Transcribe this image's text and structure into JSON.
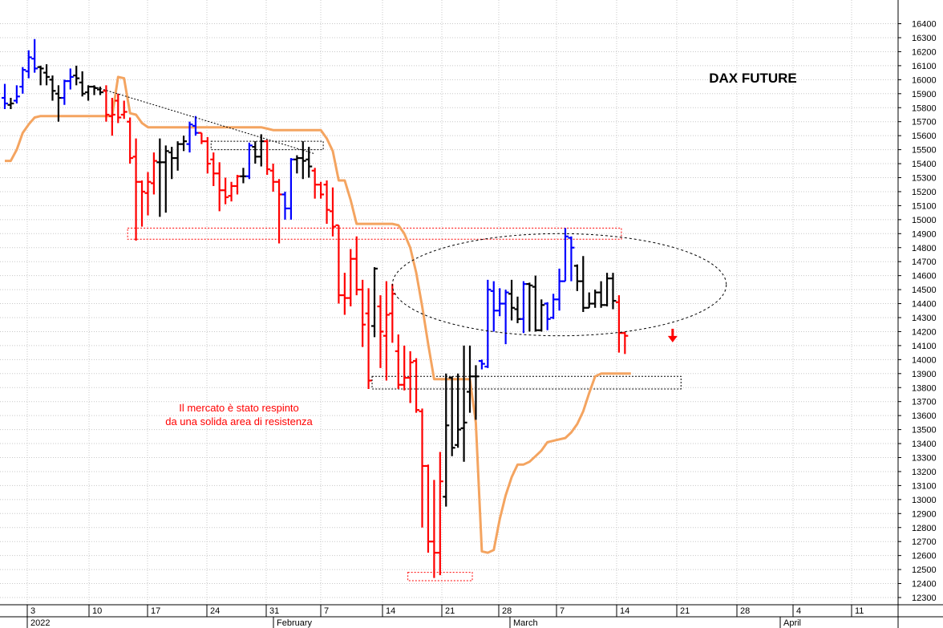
{
  "chart_data": {
    "type": "ohlc",
    "title": "DAX FUTURE",
    "annotation_lines": [
      "Il mercato è stato respinto",
      "da una solida area di resistenza"
    ],
    "ylim": [
      12240,
      16410
    ],
    "y_ticks": [
      12300,
      12400,
      12500,
      12600,
      12700,
      12800,
      12900,
      13000,
      13100,
      13200,
      13300,
      13400,
      13500,
      13600,
      13700,
      13800,
      13900,
      14000,
      14100,
      14200,
      14300,
      14400,
      14500,
      14600,
      14700,
      14800,
      14900,
      15000,
      15100,
      15200,
      15300,
      15400,
      15500,
      15600,
      15700,
      15800,
      15900,
      16000,
      16100,
      16200,
      16300,
      16400
    ],
    "x_label_days": [
      "3",
      "10",
      "17",
      "24",
      "31",
      "7",
      "14",
      "21",
      "28",
      "7",
      "14",
      "21",
      "28",
      "4",
      "11"
    ],
    "x_label_months": [
      "2022",
      "February",
      "March",
      "April"
    ],
    "colors": {
      "up": "#0000ff",
      "down": "#ff0000",
      "neutral": "#000000",
      "line": "#f4a460",
      "zone": "#ff0000",
      "axis": "#000000"
    },
    "bars": [
      {
        "o": 15870,
        "h": 15970,
        "l": 15790,
        "c": 15830,
        "col": "up"
      },
      {
        "o": 15820,
        "h": 15870,
        "l": 15790,
        "c": 15830,
        "col": "neutral"
      },
      {
        "o": 15850,
        "h": 15960,
        "l": 15830,
        "c": 15880,
        "col": "up"
      },
      {
        "o": 15950,
        "h": 16090,
        "l": 15900,
        "c": 16070,
        "col": "up"
      },
      {
        "o": 16060,
        "h": 16210,
        "l": 16010,
        "c": 16160,
        "col": "up"
      },
      {
        "o": 16150,
        "h": 16290,
        "l": 16050,
        "c": 16080,
        "col": "up"
      },
      {
        "o": 16090,
        "h": 16100,
        "l": 15960,
        "c": 16080,
        "col": "neutral"
      },
      {
        "o": 16050,
        "h": 16110,
        "l": 15960,
        "c": 16020,
        "col": "neutral"
      },
      {
        "o": 16000,
        "h": 16030,
        "l": 15850,
        "c": 15920,
        "col": "neutral"
      },
      {
        "o": 15900,
        "h": 15960,
        "l": 15700,
        "c": 15870,
        "col": "neutral"
      },
      {
        "o": 15870,
        "h": 16000,
        "l": 15820,
        "c": 15990,
        "col": "up"
      },
      {
        "o": 15990,
        "h": 16080,
        "l": 15930,
        "c": 16020,
        "col": "up"
      },
      {
        "o": 16030,
        "h": 16100,
        "l": 15960,
        "c": 16010,
        "col": "neutral"
      },
      {
        "o": 15980,
        "h": 16060,
        "l": 15880,
        "c": 15900,
        "col": "neutral"
      },
      {
        "o": 15910,
        "h": 15960,
        "l": 15850,
        "c": 15950,
        "col": "neutral"
      },
      {
        "o": 15950,
        "h": 15960,
        "l": 15890,
        "c": 15940,
        "col": "neutral"
      },
      {
        "o": 15930,
        "h": 15950,
        "l": 15890,
        "c": 15910,
        "col": "neutral"
      },
      {
        "o": 15920,
        "h": 15960,
        "l": 15700,
        "c": 15750,
        "col": "down"
      },
      {
        "o": 15740,
        "h": 15870,
        "l": 15600,
        "c": 15750,
        "col": "down"
      },
      {
        "o": 15850,
        "h": 15900,
        "l": 15690,
        "c": 15730,
        "col": "down"
      },
      {
        "o": 15750,
        "h": 15850,
        "l": 15720,
        "c": 15770,
        "col": "down"
      },
      {
        "o": 15700,
        "h": 15730,
        "l": 15400,
        "c": 15440,
        "col": "down"
      },
      {
        "o": 15450,
        "h": 15580,
        "l": 14850,
        "c": 15270,
        "col": "down"
      },
      {
        "o": 15270,
        "h": 15280,
        "l": 14950,
        "c": 15200,
        "col": "down"
      },
      {
        "o": 15190,
        "h": 15340,
        "l": 15030,
        "c": 15270,
        "col": "down"
      },
      {
        "o": 15260,
        "h": 15480,
        "l": 15180,
        "c": 15420,
        "col": "down"
      },
      {
        "o": 15410,
        "h": 15580,
        "l": 15020,
        "c": 15410,
        "col": "neutral"
      },
      {
        "o": 15410,
        "h": 15530,
        "l": 15050,
        "c": 15490,
        "col": "neutral"
      },
      {
        "o": 15480,
        "h": 15520,
        "l": 15290,
        "c": 15440,
        "col": "neutral"
      },
      {
        "o": 15440,
        "h": 15560,
        "l": 15350,
        "c": 15540,
        "col": "neutral"
      },
      {
        "o": 15540,
        "h": 15600,
        "l": 15490,
        "c": 15560,
        "col": "neutral"
      },
      {
        "o": 15540,
        "h": 15700,
        "l": 15480,
        "c": 15680,
        "col": "up"
      },
      {
        "o": 15670,
        "h": 15740,
        "l": 15600,
        "c": 15620,
        "col": "up"
      },
      {
        "o": 15620,
        "h": 15620,
        "l": 15540,
        "c": 15560,
        "col": "down"
      },
      {
        "o": 15560,
        "h": 15590,
        "l": 15330,
        "c": 15400,
        "col": "down"
      },
      {
        "o": 15430,
        "h": 15480,
        "l": 15240,
        "c": 15330,
        "col": "down"
      },
      {
        "o": 15330,
        "h": 15410,
        "l": 15060,
        "c": 15210,
        "col": "down"
      },
      {
        "o": 15210,
        "h": 15300,
        "l": 15110,
        "c": 15160,
        "col": "down"
      },
      {
        "o": 15170,
        "h": 15270,
        "l": 15130,
        "c": 15240,
        "col": "down"
      },
      {
        "o": 15240,
        "h": 15320,
        "l": 15180,
        "c": 15310,
        "col": "down"
      },
      {
        "o": 15310,
        "h": 15370,
        "l": 15260,
        "c": 15310,
        "col": "neutral"
      },
      {
        "o": 15310,
        "h": 15550,
        "l": 15290,
        "c": 15530,
        "col": "up"
      },
      {
        "o": 15520,
        "h": 15560,
        "l": 15400,
        "c": 15450,
        "col": "neutral"
      },
      {
        "o": 15450,
        "h": 15610,
        "l": 15380,
        "c": 15560,
        "col": "neutral"
      },
      {
        "o": 15560,
        "h": 15570,
        "l": 15320,
        "c": 15360,
        "col": "down"
      },
      {
        "o": 15350,
        "h": 15400,
        "l": 15200,
        "c": 15270,
        "col": "down"
      },
      {
        "o": 15270,
        "h": 15290,
        "l": 14830,
        "c": 15180,
        "col": "down"
      },
      {
        "o": 15180,
        "h": 15200,
        "l": 15000,
        "c": 15080,
        "col": "up"
      },
      {
        "o": 15080,
        "h": 15440,
        "l": 15000,
        "c": 15430,
        "col": "up"
      },
      {
        "o": 15430,
        "h": 15460,
        "l": 15330,
        "c": 15440,
        "col": "neutral"
      },
      {
        "o": 15440,
        "h": 15560,
        "l": 15290,
        "c": 15420,
        "col": "neutral"
      },
      {
        "o": 15430,
        "h": 15520,
        "l": 15300,
        "c": 15380,
        "col": "neutral"
      },
      {
        "o": 15350,
        "h": 15370,
        "l": 15150,
        "c": 15250,
        "col": "down"
      },
      {
        "o": 15250,
        "h": 15270,
        "l": 15150,
        "c": 15180,
        "col": "down"
      },
      {
        "o": 15250,
        "h": 15280,
        "l": 14970,
        "c": 15070,
        "col": "down"
      },
      {
        "o": 15060,
        "h": 15230,
        "l": 14880,
        "c": 14950,
        "col": "down"
      },
      {
        "o": 14960,
        "h": 14960,
        "l": 14400,
        "c": 14460,
        "col": "down"
      },
      {
        "o": 14460,
        "h": 14620,
        "l": 14320,
        "c": 14440,
        "col": "down"
      },
      {
        "o": 14440,
        "h": 14790,
        "l": 14380,
        "c": 14720,
        "col": "down"
      },
      {
        "o": 14720,
        "h": 14880,
        "l": 14460,
        "c": 14500,
        "col": "down"
      },
      {
        "o": 14500,
        "h": 14570,
        "l": 14090,
        "c": 14250,
        "col": "down"
      },
      {
        "o": 14330,
        "h": 14510,
        "l": 13790,
        "c": 13850,
        "col": "down"
      },
      {
        "o": 14240,
        "h": 14660,
        "l": 14160,
        "c": 14650,
        "col": "neutral"
      },
      {
        "o": 14380,
        "h": 14460,
        "l": 13940,
        "c": 14200,
        "col": "down"
      },
      {
        "o": 14170,
        "h": 14560,
        "l": 13850,
        "c": 14320,
        "col": "down"
      },
      {
        "o": 14330,
        "h": 14540,
        "l": 14120,
        "c": 14470,
        "col": "down"
      },
      {
        "o": 14060,
        "h": 14180,
        "l": 13790,
        "c": 13820,
        "col": "down"
      },
      {
        "o": 13820,
        "h": 14100,
        "l": 13780,
        "c": 13870,
        "col": "down"
      },
      {
        "o": 13870,
        "h": 14060,
        "l": 13690,
        "c": 13980,
        "col": "down"
      },
      {
        "o": 13990,
        "h": 14010,
        "l": 13620,
        "c": 13640,
        "col": "down"
      },
      {
        "o": 13630,
        "h": 13650,
        "l": 12800,
        "c": 13240,
        "col": "down"
      },
      {
        "o": 13240,
        "h": 13250,
        "l": 12620,
        "c": 12700,
        "col": "down"
      },
      {
        "o": 12700,
        "h": 13140,
        "l": 12440,
        "c": 12620,
        "col": "down"
      },
      {
        "o": 12620,
        "h": 13340,
        "l": 12460,
        "c": 13130,
        "col": "down"
      },
      {
        "o": 13020,
        "h": 13900,
        "l": 12950,
        "c": 13530,
        "col": "neutral"
      },
      {
        "o": 13870,
        "h": 13880,
        "l": 13310,
        "c": 13370,
        "col": "neutral"
      },
      {
        "o": 13390,
        "h": 13900,
        "l": 13370,
        "c": 13500,
        "col": "neutral"
      },
      {
        "o": 13510,
        "h": 14100,
        "l": 13270,
        "c": 13550,
        "col": "neutral"
      },
      {
        "o": 13770,
        "h": 14100,
        "l": 13620,
        "c": 13880,
        "col": "neutral"
      },
      {
        "o": 13880,
        "h": 13960,
        "l": 13570,
        "c": 13880,
        "col": "neutral"
      },
      {
        "o": 13990,
        "h": 14000,
        "l": 13930,
        "c": 13970,
        "col": "up"
      },
      {
        "o": 13950,
        "h": 14570,
        "l": 13940,
        "c": 14500,
        "col": "up"
      },
      {
        "o": 14490,
        "h": 14560,
        "l": 14200,
        "c": 14350,
        "col": "up"
      },
      {
        "o": 14350,
        "h": 14510,
        "l": 14310,
        "c": 14400,
        "col": "up"
      },
      {
        "o": 14400,
        "h": 14500,
        "l": 14110,
        "c": 14480,
        "col": "up"
      },
      {
        "o": 14470,
        "h": 14570,
        "l": 14280,
        "c": 14370,
        "col": "neutral"
      },
      {
        "o": 14360,
        "h": 14450,
        "l": 14260,
        "c": 14290,
        "col": "neutral"
      },
      {
        "o": 14290,
        "h": 14560,
        "l": 14190,
        "c": 14540,
        "col": "up"
      },
      {
        "o": 14540,
        "h": 14550,
        "l": 14200,
        "c": 14530,
        "col": "neutral"
      },
      {
        "o": 14520,
        "h": 14600,
        "l": 14200,
        "c": 14210,
        "col": "neutral"
      },
      {
        "o": 14210,
        "h": 14430,
        "l": 14200,
        "c": 14390,
        "col": "neutral"
      },
      {
        "o": 14400,
        "h": 14410,
        "l": 14210,
        "c": 14290,
        "col": "up"
      },
      {
        "o": 14300,
        "h": 14470,
        "l": 14290,
        "c": 14430,
        "col": "up"
      },
      {
        "o": 14430,
        "h": 14650,
        "l": 14350,
        "c": 14560,
        "col": "up"
      },
      {
        "o": 14560,
        "h": 14940,
        "l": 14560,
        "c": 14880,
        "col": "up"
      },
      {
        "o": 14870,
        "h": 14880,
        "l": 14560,
        "c": 14800,
        "col": "up"
      },
      {
        "o": 14670,
        "h": 14680,
        "l": 14490,
        "c": 14560,
        "col": "neutral"
      },
      {
        "o": 14560,
        "h": 14740,
        "l": 14340,
        "c": 14370,
        "col": "neutral"
      },
      {
        "o": 14370,
        "h": 14480,
        "l": 14370,
        "c": 14400,
        "col": "neutral"
      },
      {
        "o": 14400,
        "h": 14500,
        "l": 14370,
        "c": 14480,
        "col": "neutral"
      },
      {
        "o": 14480,
        "h": 14560,
        "l": 14370,
        "c": 14390,
        "col": "neutral"
      },
      {
        "o": 14390,
        "h": 14620,
        "l": 14380,
        "c": 14580,
        "col": "neutral"
      },
      {
        "o": 14580,
        "h": 14620,
        "l": 14360,
        "c": 14420,
        "col": "neutral"
      },
      {
        "o": 14410,
        "h": 14460,
        "l": 14050,
        "c": 14190,
        "col": "down"
      },
      {
        "o": 14190,
        "h": 14200,
        "l": 14040,
        "c": 14170,
        "col": "down"
      }
    ],
    "ma_line": [
      15420,
      15420,
      15500,
      15620,
      15680,
      15730,
      15740,
      15740,
      15740,
      15740,
      15740,
      15740,
      15740,
      15740,
      15740,
      15740,
      15740,
      15740,
      15740,
      15740,
      15750,
      15760,
      15750,
      15690,
      15660,
      15660,
      15660,
      15660,
      15660,
      15660,
      15660,
      15660,
      15660,
      15660,
      15660,
      15660,
      15660,
      15660,
      15660,
      15660,
      15660,
      15660,
      15660,
      15660,
      15650,
      15640,
      15640,
      15640,
      15640,
      15640,
      15640,
      15640,
      15640,
      15640,
      15580,
      15490,
      15280,
      15280,
      15140,
      14970,
      14970,
      14970,
      14970,
      14970,
      14970,
      14970,
      14960,
      14900,
      14800,
      14620,
      14380,
      14110,
      13860,
      13860,
      13860,
      13860,
      13860,
      13860,
      13860,
      13550,
      12630,
      12620,
      12640,
      12860,
      13030,
      13160,
      13250,
      13250,
      13270,
      13310,
      13350,
      13410,
      13420,
      13430,
      13440,
      13480,
      13540,
      13630,
      13760,
      13880,
      13900,
      13900,
      13900,
      13900,
      13900,
      13900
    ],
    "ma_spike": [
      {
        "i": 19,
        "v": 16020
      },
      {
        "i": 20,
        "v": 16010
      }
    ],
    "resistance_zones": [
      {
        "from": 35,
        "to": 53,
        "top": 15560,
        "bottom": 15500,
        "col": "neutral"
      },
      {
        "from": 21,
        "to": 103,
        "top": 14940,
        "bottom": 14860,
        "col": "zone"
      },
      {
        "from": 62,
        "to": 113,
        "top": 13880,
        "bottom": 13790,
        "col": "neutral"
      },
      {
        "from": 68,
        "to": 78,
        "top": 12480,
        "bottom": 12420,
        "col": "zone"
      }
    ],
    "trendline": [
      {
        "i": 15,
        "v": 15950
      },
      {
        "i": 52,
        "v": 15470
      }
    ],
    "ellipse": {
      "cx_i": 93,
      "cy": 14535,
      "rx_i": 28,
      "ry": 365
    },
    "arrow": {
      "i": 112,
      "v": 14140
    }
  }
}
